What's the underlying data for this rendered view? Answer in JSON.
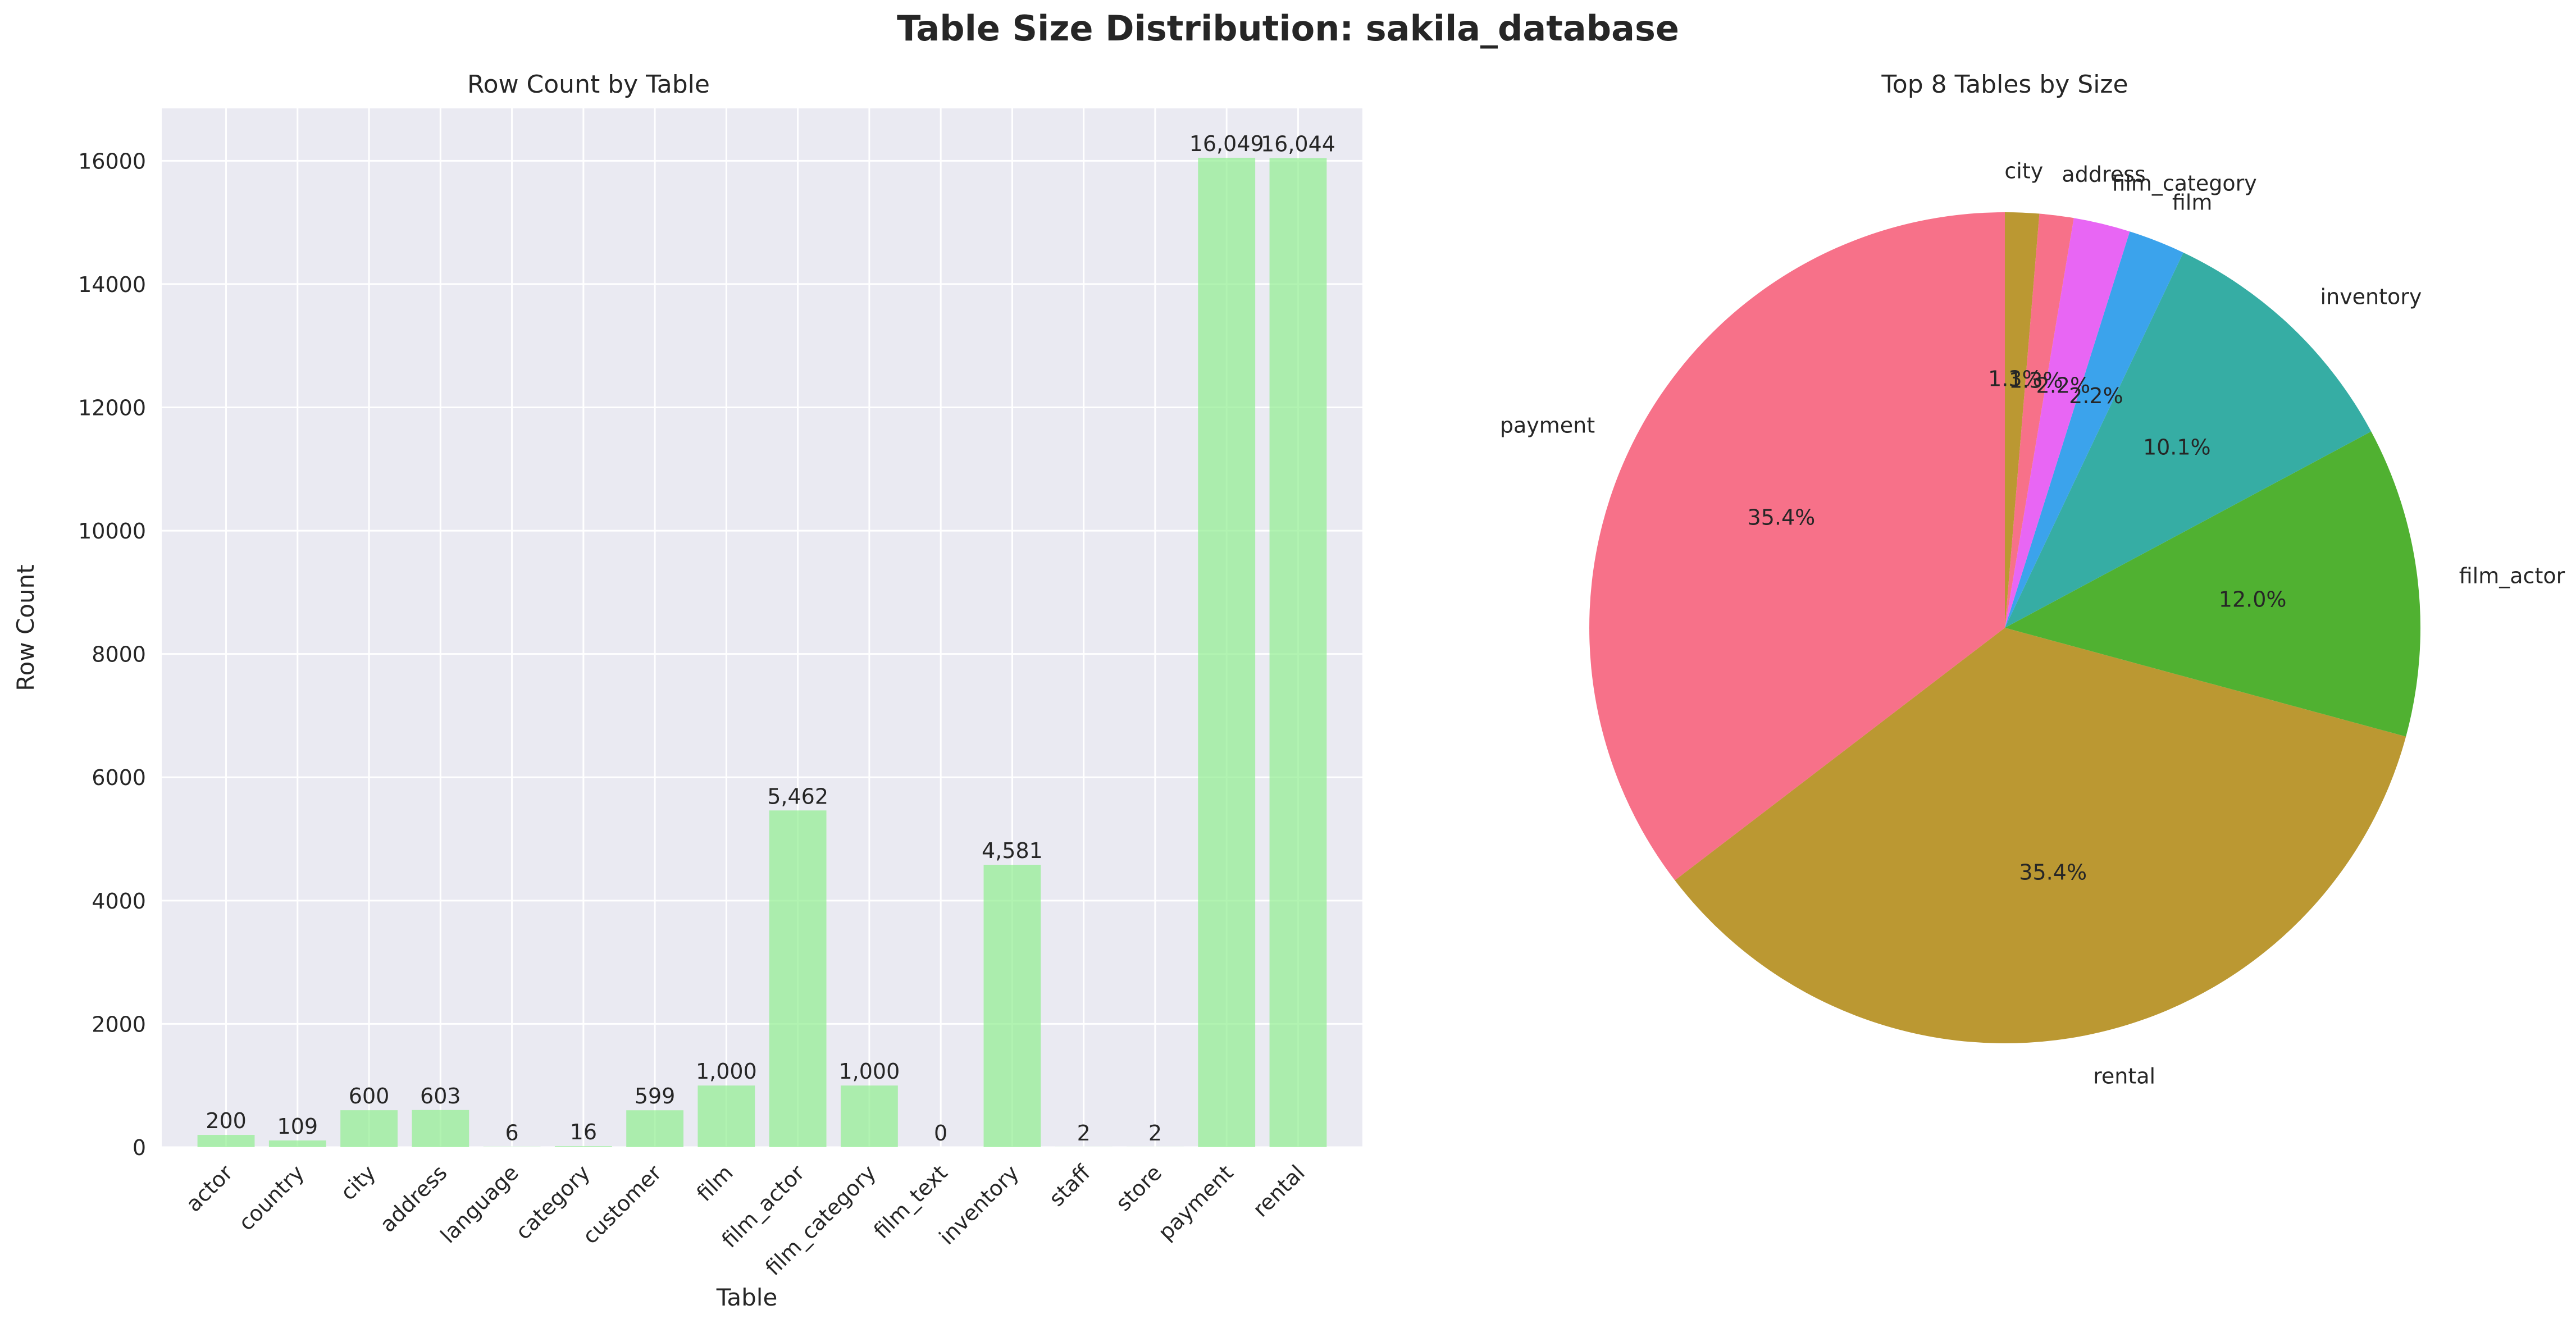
{
  "suptitle": "Table Size Distribution: sakila_database",
  "chart_data": [
    {
      "type": "bar",
      "title": "Row Count by Table",
      "xlabel": "Table",
      "ylabel": "Row Count",
      "categories": [
        "actor",
        "country",
        "city",
        "address",
        "language",
        "category",
        "customer",
        "film",
        "film_actor",
        "film_category",
        "film_text",
        "inventory",
        "staff",
        "store",
        "payment",
        "rental"
      ],
      "values": [
        200,
        109,
        600,
        603,
        6,
        16,
        599,
        1000,
        5462,
        1000,
        0,
        4581,
        2,
        2,
        16049,
        16044
      ],
      "value_labels": [
        "200",
        "109",
        "600",
        "603",
        "6",
        "16",
        "599",
        "1,000",
        "5,462",
        "1,000",
        "0",
        "4,581",
        "2",
        "2",
        "16,049",
        "16,044"
      ],
      "yticks": [
        0,
        2000,
        4000,
        6000,
        8000,
        10000,
        12000,
        14000,
        16000
      ],
      "ylim": [
        0,
        16850
      ],
      "grid": true,
      "bar_color": "#90ee90",
      "background": "#eaeaf2"
    },
    {
      "type": "pie",
      "title": "Top 8 Tables by Size",
      "labels": [
        "payment",
        "rental",
        "film_actor",
        "inventory",
        "film",
        "film_category",
        "address",
        "city"
      ],
      "values": [
        16049,
        16044,
        5462,
        4581,
        1000,
        1000,
        603,
        600
      ],
      "percent_labels": [
        "35.4%",
        "35.4%",
        "12.0%",
        "10.1%",
        "2.2%",
        "2.2%",
        "1.3%",
        "1.3%"
      ],
      "colors": [
        "#f77189",
        "#bb9832",
        "#50b131",
        "#36ada4",
        "#3ba3ec",
        "#e866f4",
        "#f77189",
        "#bb9832"
      ],
      "start_angle": 90,
      "direction": "counterclockwise"
    }
  ]
}
